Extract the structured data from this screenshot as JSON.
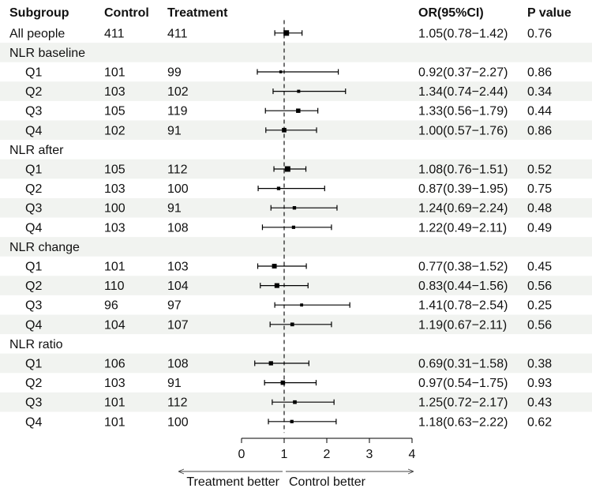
{
  "chart_data": {
    "type": "forest",
    "columns": {
      "subgroup": "Subgroup",
      "control": "Control",
      "treatment": "Treatment",
      "or": "OR(95%CI)",
      "p": "P value"
    },
    "rows": [
      {
        "label": "All people",
        "kind": "item",
        "indent": false,
        "control": "411",
        "treatment": "411",
        "or": 1.05,
        "lo": 0.78,
        "hi": 1.42,
        "ci_text": "1.05(0.78−1.42)",
        "p": "0.76"
      },
      {
        "label": "NLR baseline",
        "kind": "header"
      },
      {
        "label": "Q1",
        "kind": "item",
        "indent": true,
        "control": "101",
        "treatment": "99",
        "or": 0.92,
        "lo": 0.37,
        "hi": 2.27,
        "ci_text": "0.92(0.37−2.27)",
        "p": "0.86"
      },
      {
        "label": "Q2",
        "kind": "item",
        "indent": true,
        "control": "103",
        "treatment": "102",
        "or": 1.34,
        "lo": 0.74,
        "hi": 2.44,
        "ci_text": "1.34(0.74−2.44)",
        "p": "0.34"
      },
      {
        "label": "Q3",
        "kind": "item",
        "indent": true,
        "control": "105",
        "treatment": "119",
        "or": 1.33,
        "lo": 0.56,
        "hi": 1.79,
        "ci_text": "1.33(0.56−1.79)",
        "p": "0.44"
      },
      {
        "label": "Q4",
        "kind": "item",
        "indent": true,
        "control": "102",
        "treatment": "91",
        "or": 1.0,
        "lo": 0.57,
        "hi": 1.76,
        "ci_text": "1.00(0.57−1.76)",
        "p": "0.86"
      },
      {
        "label": "NLR after",
        "kind": "header"
      },
      {
        "label": "Q1",
        "kind": "item",
        "indent": true,
        "control": "105",
        "treatment": "112",
        "or": 1.08,
        "lo": 0.76,
        "hi": 1.51,
        "ci_text": "1.08(0.76−1.51)",
        "p": "0.52"
      },
      {
        "label": "Q2",
        "kind": "item",
        "indent": true,
        "control": "103",
        "treatment": "100",
        "or": 0.87,
        "lo": 0.39,
        "hi": 1.95,
        "ci_text": "0.87(0.39−1.95)",
        "p": "0.75"
      },
      {
        "label": "Q3",
        "kind": "item",
        "indent": true,
        "control": "100",
        "treatment": "91",
        "or": 1.24,
        "lo": 0.69,
        "hi": 2.24,
        "ci_text": "1.24(0.69−2.24)",
        "p": "0.48"
      },
      {
        "label": "Q4",
        "kind": "item",
        "indent": true,
        "control": "103",
        "treatment": "108",
        "or": 1.22,
        "lo": 0.49,
        "hi": 2.11,
        "ci_text": "1.22(0.49−2.11)",
        "p": "0.49"
      },
      {
        "label": "NLR change",
        "kind": "header"
      },
      {
        "label": "Q1",
        "kind": "item",
        "indent": true,
        "control": "101",
        "treatment": "103",
        "or": 0.77,
        "lo": 0.38,
        "hi": 1.52,
        "ci_text": "0.77(0.38−1.52)",
        "p": "0.45"
      },
      {
        "label": "Q2",
        "kind": "item",
        "indent": true,
        "control": "110",
        "treatment": "104",
        "or": 0.83,
        "lo": 0.44,
        "hi": 1.56,
        "ci_text": "0.83(0.44−1.56)",
        "p": "0.56"
      },
      {
        "label": "Q3",
        "kind": "item",
        "indent": true,
        "control": "96",
        "treatment": "97",
        "or": 1.41,
        "lo": 0.78,
        "hi": 2.54,
        "ci_text": "1.41(0.78−2.54)",
        "p": "0.25"
      },
      {
        "label": "Q4",
        "kind": "item",
        "indent": true,
        "control": "104",
        "treatment": "107",
        "or": 1.19,
        "lo": 0.67,
        "hi": 2.11,
        "ci_text": "1.19(0.67−2.11)",
        "p": "0.56"
      },
      {
        "label": "NLR ratio",
        "kind": "header"
      },
      {
        "label": "Q1",
        "kind": "item",
        "indent": true,
        "control": "106",
        "treatment": "108",
        "or": 0.69,
        "lo": 0.31,
        "hi": 1.58,
        "ci_text": "0.69(0.31−1.58)",
        "p": "0.38"
      },
      {
        "label": "Q2",
        "kind": "item",
        "indent": true,
        "control": "103",
        "treatment": "91",
        "or": 0.97,
        "lo": 0.54,
        "hi": 1.75,
        "ci_text": "0.97(0.54−1.75)",
        "p": "0.93"
      },
      {
        "label": "Q3",
        "kind": "item",
        "indent": true,
        "control": "101",
        "treatment": "112",
        "or": 1.25,
        "lo": 0.72,
        "hi": 2.17,
        "ci_text": "1.25(0.72−2.17)",
        "p": "0.43"
      },
      {
        "label": "Q4",
        "kind": "item",
        "indent": true,
        "control": "101",
        "treatment": "100",
        "or": 1.18,
        "lo": 0.63,
        "hi": 2.22,
        "ci_text": "1.18(0.63−2.22)",
        "p": "0.62"
      }
    ],
    "x_axis": {
      "ticks": [
        0,
        1,
        2,
        3,
        4
      ],
      "tick_labels": [
        "0",
        "1",
        "2",
        "3",
        "4"
      ],
      "range": [
        0,
        4
      ],
      "reference_line": 1,
      "left_label": "Treatment better",
      "right_label": "Control better"
    },
    "colors": {
      "band": "#f1f3f0",
      "marks": "#000000",
      "text": "#111111"
    }
  }
}
